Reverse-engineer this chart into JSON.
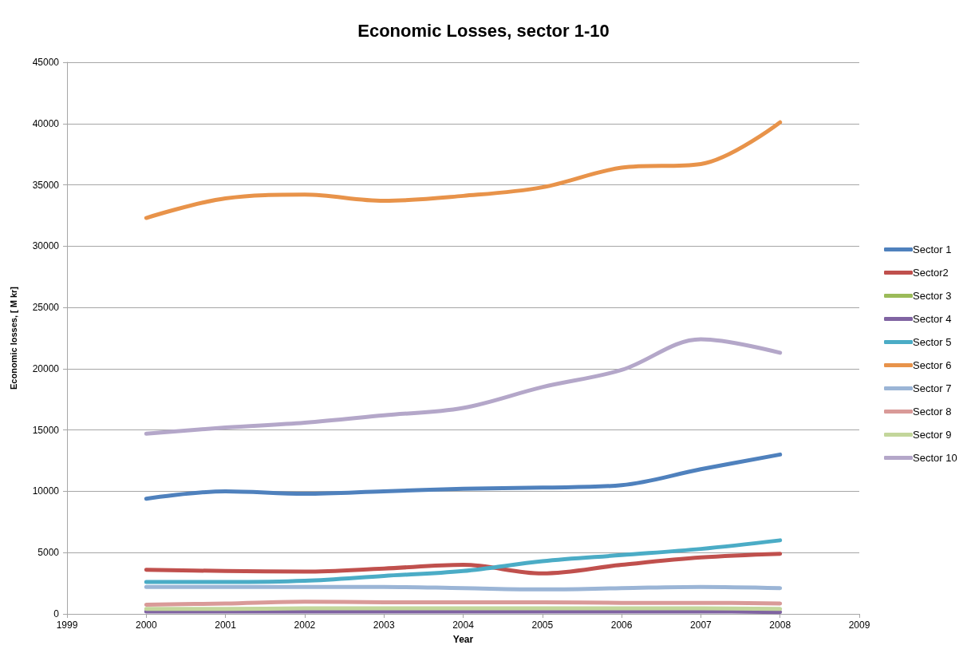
{
  "chart_data": {
    "type": "line",
    "title": "Economic Losses, sector 1-10",
    "xlabel": "Year",
    "ylabel": "Economic losses, [ M kr]",
    "x": [
      2000,
      2001,
      2002,
      2003,
      2004,
      2005,
      2006,
      2007,
      2008
    ],
    "series": [
      {
        "name": "Sector 1",
        "color": "#4f81bd",
        "values": [
          9400,
          10000,
          9800,
          10000,
          10200,
          10300,
          10500,
          11800,
          13000
        ]
      },
      {
        "name": "Sector2",
        "color": "#c0504d",
        "values": [
          3600,
          3500,
          3450,
          3700,
          4000,
          3300,
          4000,
          4600,
          4900
        ]
      },
      {
        "name": "Sector 3",
        "color": "#9bbb59",
        "values": [
          null,
          null,
          null,
          null,
          null,
          null,
          null,
          null,
          null
        ]
      },
      {
        "name": "Sector 4",
        "color": "#8064a2",
        "values": [
          200,
          200,
          200,
          200,
          200,
          200,
          200,
          200,
          150
        ]
      },
      {
        "name": "Sector 5",
        "color": "#4bacc6",
        "values": [
          2600,
          2600,
          2700,
          3100,
          3500,
          4300,
          4800,
          5300,
          6000
        ]
      },
      {
        "name": "Sector 6",
        "color": "#e8934a",
        "values": [
          32300,
          33900,
          34200,
          33700,
          34100,
          34800,
          36400,
          36700,
          40100
        ]
      },
      {
        "name": "Sector 7",
        "color": "#9bb5d6",
        "values": [
          2200,
          2200,
          2200,
          2200,
          2100,
          2000,
          2100,
          2200,
          2100
        ]
      },
      {
        "name": "Sector 8",
        "color": "#d99a98",
        "values": [
          750,
          850,
          1000,
          950,
          950,
          950,
          900,
          900,
          850
        ]
      },
      {
        "name": "Sector 9",
        "color": "#c3d69b",
        "values": [
          400,
          400,
          450,
          450,
          450,
          450,
          450,
          450,
          400
        ]
      },
      {
        "name": "Sector 10",
        "color": "#b4a7c9",
        "values": [
          14700,
          15200,
          15600,
          16200,
          16800,
          18500,
          19900,
          22400,
          21300
        ]
      }
    ],
    "xlim": [
      1999,
      2009
    ],
    "xticks": [
      1999,
      2000,
      2001,
      2002,
      2003,
      2004,
      2005,
      2006,
      2007,
      2008,
      2009
    ],
    "ylim": [
      0,
      45000
    ],
    "yticks": [
      0,
      5000,
      10000,
      15000,
      20000,
      25000,
      30000,
      35000,
      40000,
      45000
    ],
    "grid": "y",
    "legend": "right",
    "marker": "none",
    "line_style": "solid"
  }
}
